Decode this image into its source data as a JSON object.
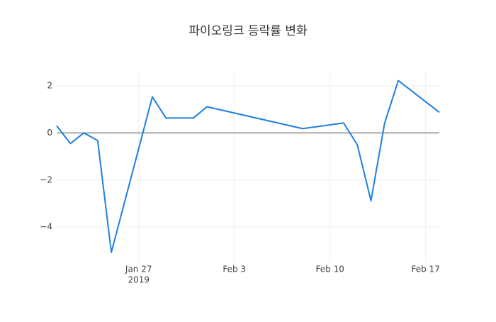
{
  "chart_data": {
    "type": "line",
    "title": "파이오링크 등락률 변화",
    "x": [
      "2019-01-21",
      "2019-01-22",
      "2019-01-23",
      "2019-01-24",
      "2019-01-25",
      "2019-01-28",
      "2019-01-29",
      "2019-01-31",
      "2019-02-01",
      "2019-02-08",
      "2019-02-11",
      "2019-02-12",
      "2019-02-13",
      "2019-02-14",
      "2019-02-15",
      "2019-02-18"
    ],
    "series": [
      {
        "color": "#1f7fe0",
        "values": [
          0.3,
          -0.45,
          0,
          -0.33,
          -5.07,
          1.53,
          0.63,
          0.63,
          1.11,
          0.18,
          0.42,
          -0.51,
          -2.88,
          0.42,
          2.22,
          0.87
        ]
      }
    ],
    "xlim": [
      "2019-01-21",
      "2019-02-18"
    ],
    "xticks": [
      {
        "value": "2019-01-27",
        "label": "Jan 27"
      },
      {
        "value": "2019-02-03",
        "label": "Feb 3"
      },
      {
        "value": "2019-02-10",
        "label": "Feb 10"
      },
      {
        "value": "2019-02-17",
        "label": "Feb 17"
      }
    ],
    "x_year_label": "2019",
    "ylim": [
      -5.5,
      2.63
    ],
    "yticks": [
      2,
      0,
      {
        "value": -2,
        "label": "−2"
      },
      {
        "value": -4,
        "label": "−4"
      }
    ],
    "grid": true,
    "zeroline": true
  }
}
